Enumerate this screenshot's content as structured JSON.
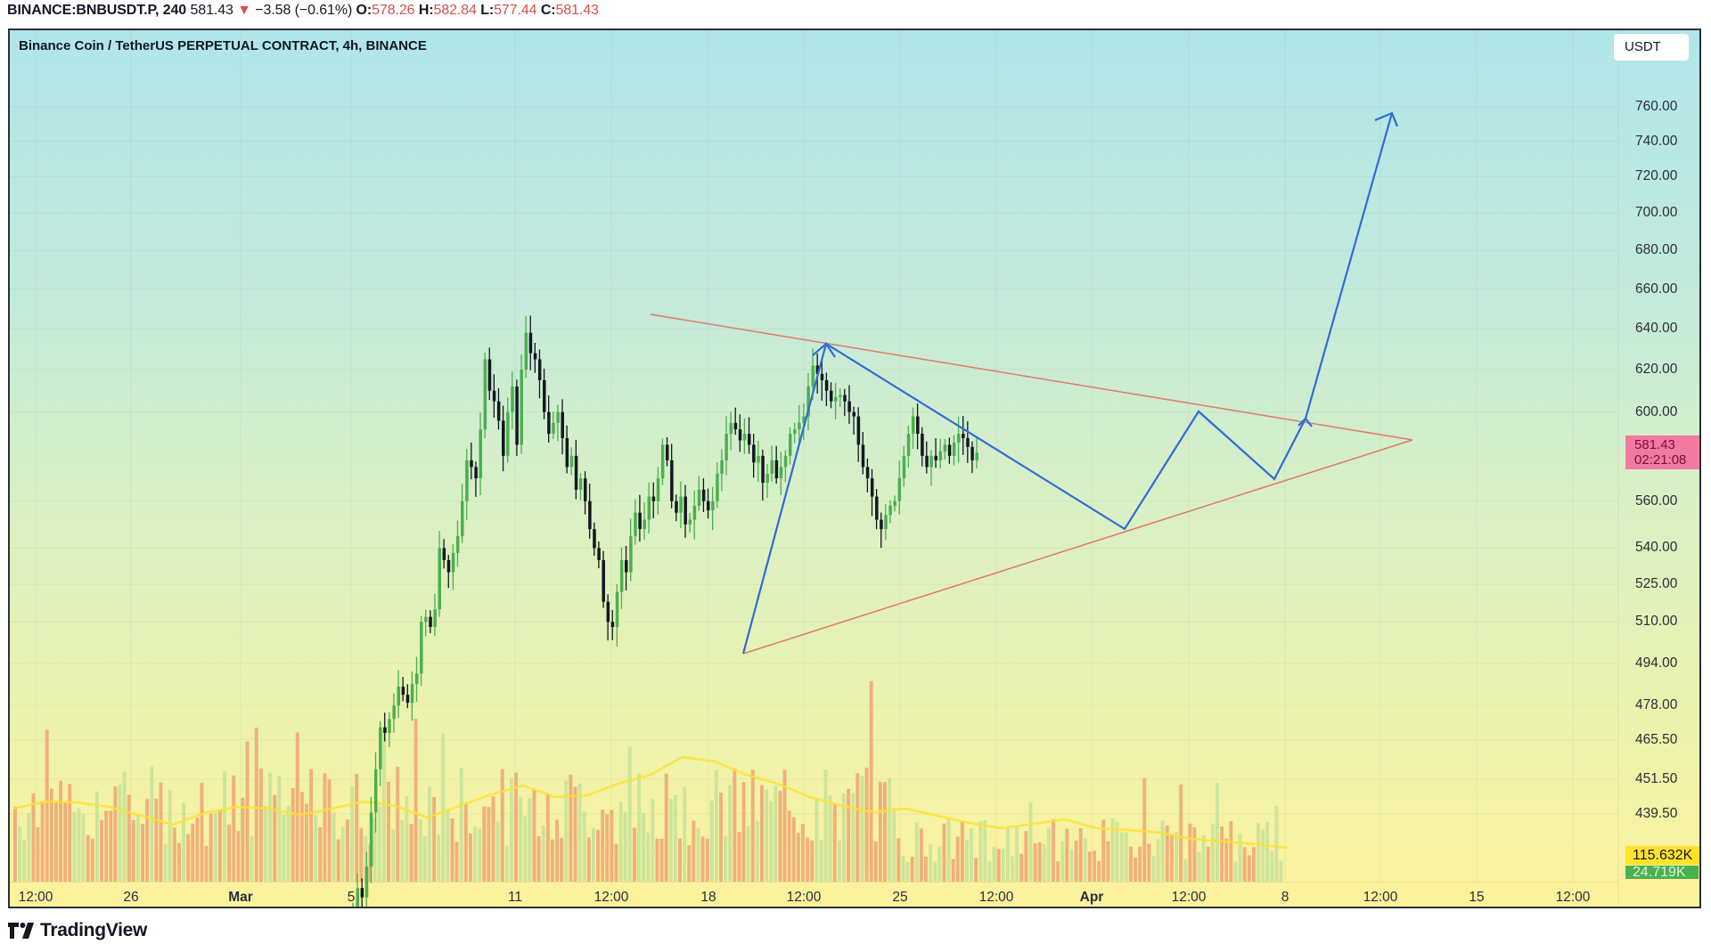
{
  "header": {
    "symbol": "BINANCE:BNBUSDT.P, 240",
    "last": "581.43",
    "change_arrow": "▼",
    "change": "−3.58 (−0.61%)",
    "open_label": "O:",
    "open": "578.26",
    "high_label": "H:",
    "high": "582.84",
    "low_label": "L:",
    "low": "577.44",
    "close_label": "C:",
    "close": "581.43"
  },
  "chart": {
    "title": "Binance Coin / TetherUS PERPETUAL CONTRACT, 4h, BINANCE",
    "currency": "USDT",
    "last_price_label": "581.43",
    "countdown": "02:21:08",
    "volume_ma_label": "115.632K",
    "volume_label": "24.719K"
  },
  "colors": {
    "up": "#4caf50",
    "down": "#131722",
    "trendline": "#e07a6a",
    "pattern": "#2f6bd8",
    "volume_up": "#c8e29a",
    "volume_down": "#f0a878",
    "volume_ma": "#ffe033",
    "last_price_bg": "#f27aa0"
  },
  "price_axis": [
    "760.00",
    "740.00",
    "720.00",
    "700.00",
    "680.00",
    "660.00",
    "640.00",
    "620.00",
    "600.00",
    "560.00",
    "540.00",
    "525.00",
    "510.00",
    "494.00",
    "478.00",
    "465.50",
    "451.50",
    "439.50"
  ],
  "time_axis": [
    {
      "label": "12:00",
      "bold": false
    },
    {
      "label": "26",
      "bold": false
    },
    {
      "label": "Mar",
      "bold": true
    },
    {
      "label": "5",
      "bold": false
    },
    {
      "label": "11",
      "bold": false
    },
    {
      "label": "12:00",
      "bold": false
    },
    {
      "label": "18",
      "bold": false
    },
    {
      "label": "12:00",
      "bold": false
    },
    {
      "label": "25",
      "bold": false
    },
    {
      "label": "12:00",
      "bold": false
    },
    {
      "label": "Apr",
      "bold": true
    },
    {
      "label": "12:00",
      "bold": false
    },
    {
      "label": "8",
      "bold": false
    },
    {
      "label": "12:00",
      "bold": false
    },
    {
      "label": "15",
      "bold": false
    },
    {
      "label": "12:00",
      "bold": false
    }
  ],
  "footer": {
    "brand": "TradingView"
  },
  "chart_data": {
    "type": "candlestick",
    "title": "Binance Coin / TetherUS PERPETUAL CONTRACT, 4h, BINANCE",
    "xlabel": "",
    "ylabel": "USDT",
    "y_scale": "log",
    "ylim": [
      430,
      775
    ],
    "x_ticks": [
      "12:00",
      "26",
      "Mar",
      "5",
      "11",
      "12:00",
      "18",
      "12:00",
      "25",
      "12:00",
      "Apr",
      "12:00",
      "8",
      "12:00",
      "15",
      "12:00"
    ],
    "y_ticks": [
      760,
      740,
      720,
      700,
      680,
      660,
      640,
      620,
      600,
      560,
      540,
      525,
      510,
      494,
      478,
      465.5,
      451.5,
      439.5
    ],
    "last_close": 581.43,
    "approx_closes_from_mar4": [
      405,
      402,
      408,
      415,
      412,
      422,
      440,
      455,
      470,
      468,
      473,
      478,
      485,
      482,
      479,
      486,
      490,
      510,
      512,
      508,
      515,
      540,
      535,
      530,
      538,
      545,
      560,
      578,
      575,
      570,
      592,
      625,
      610,
      605,
      596,
      580,
      600,
      612,
      585,
      620,
      638,
      628,
      625,
      615,
      600,
      590,
      595,
      600,
      588,
      575,
      580,
      565,
      570,
      560,
      548,
      540,
      535,
      518,
      510,
      508,
      522,
      535,
      530,
      545,
      555,
      548,
      552,
      562,
      560,
      570,
      585,
      578,
      560,
      555,
      562,
      550,
      552,
      558,
      565,
      560,
      556,
      560,
      572,
      578,
      590,
      595,
      592,
      587,
      590,
      585,
      577,
      580,
      568,
      572,
      578,
      570,
      575,
      580,
      590,
      592,
      595,
      598,
      612,
      622,
      618,
      615,
      610,
      605,
      607,
      608,
      605,
      600,
      598,
      585,
      575,
      570,
      562,
      552,
      548,
      554,
      558,
      560,
      570,
      580,
      590,
      598,
      590,
      580,
      575,
      580,
      578,
      582,
      585,
      580,
      586,
      590,
      588,
      584,
      578,
      581.43
    ],
    "annotations": {
      "triangle_upper": [
        [
          "Mar 15 08:00",
          649
        ],
        [
          "Apr 11",
          590
        ]
      ],
      "triangle_lower": [
        [
          "Mar 19 20:00",
          495
        ],
        [
          "Apr 11",
          590
        ]
      ],
      "pattern_path": [
        [
          495,
          "Mar 19"
        ],
        [
          636,
          "Mar 21"
        ],
        [
          551,
          "Apr 1"
        ],
        [
          601,
          "Apr 5"
        ],
        [
          566,
          "Apr 7"
        ],
        [
          594,
          "Apr 8"
        ],
        [
          758,
          "Apr 10"
        ]
      ],
      "projection_target": 758
    },
    "volume": {
      "ma_label": "115.632K",
      "current": "24.719K"
    },
    "legend": []
  }
}
